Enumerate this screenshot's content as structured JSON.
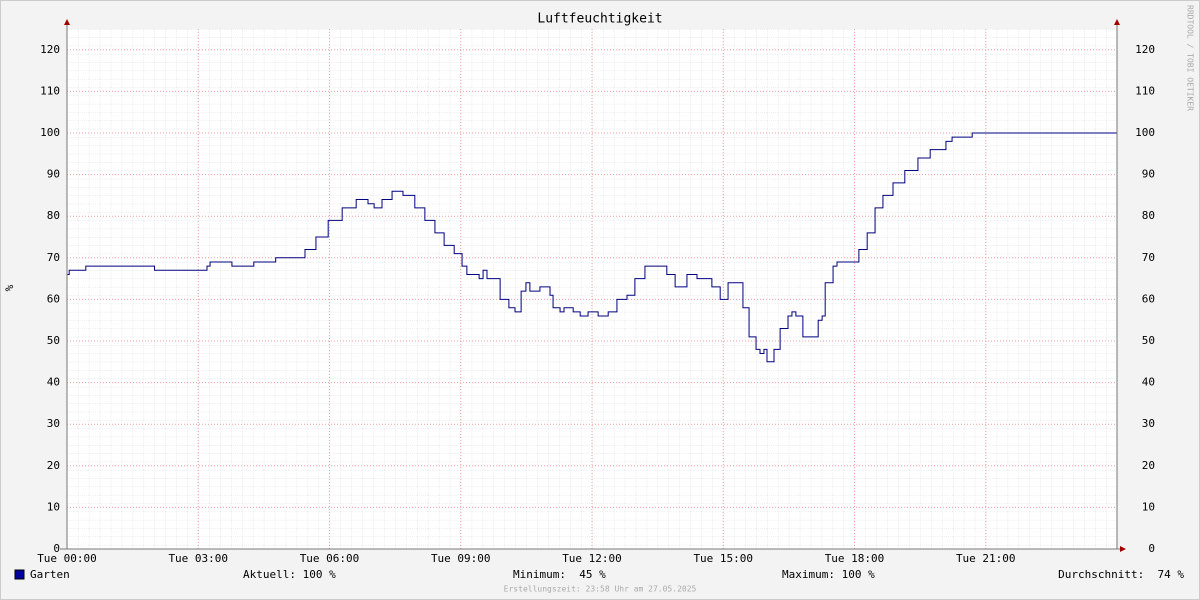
{
  "chart_data": {
    "type": "line",
    "title": "Luftfeuchtigkeit",
    "y_label": "%",
    "watermark": "RRDTOOL / TOBI OETIKER",
    "footer": "Erstellungszeit: 23:58 Uhr am 27.05.2025",
    "xlim": [
      0,
      24
    ],
    "xticks": [
      {
        "value": 0,
        "label": "Tue 00:00"
      },
      {
        "value": 3,
        "label": "Tue 03:00"
      },
      {
        "value": 6,
        "label": "Tue 06:00"
      },
      {
        "value": 9,
        "label": "Tue 09:00"
      },
      {
        "value": 12,
        "label": "Tue 12:00"
      },
      {
        "value": 15,
        "label": "Tue 15:00"
      },
      {
        "value": 18,
        "label": "Tue 18:00"
      },
      {
        "value": 21,
        "label": "Tue 21:00"
      }
    ],
    "ylim": [
      0,
      125
    ],
    "yticks": [
      0,
      10,
      20,
      30,
      40,
      50,
      60,
      70,
      80,
      90,
      100,
      110,
      120
    ],
    "grid": true,
    "step": true,
    "x": [
      0,
      0.05,
      0.4,
      0.43,
      1.97,
      2.0,
      3.1,
      3.2,
      3.27,
      3.73,
      3.77,
      4.23,
      4.27,
      4.73,
      4.77,
      5.36,
      5.44,
      5.69,
      5.97,
      6.29,
      6.61,
      6.88,
      7.02,
      7.2,
      7.43,
      7.68,
      7.95,
      8.18,
      8.41,
      8.62,
      8.85,
      9.03,
      9.14,
      9.35,
      9.42,
      9.51,
      9.6,
      9.78,
      9.9,
      10.1,
      10.24,
      10.38,
      10.49,
      10.58,
      10.72,
      10.81,
      11.04,
      11.11,
      11.27,
      11.36,
      11.57,
      11.73,
      11.91,
      12.14,
      12.37,
      12.57,
      12.8,
      12.98,
      13.21,
      13.46,
      13.71,
      13.9,
      14.17,
      14.4,
      14.74,
      14.93,
      15.11,
      15.31,
      15.45,
      15.59,
      15.75,
      15.84,
      15.93,
      16.0,
      16.16,
      16.3,
      16.48,
      16.57,
      16.66,
      16.82,
      16.96,
      17.17,
      17.26,
      17.33,
      17.51,
      17.6,
      17.85,
      18.1,
      18.29,
      18.47,
      18.65,
      18.88,
      19.15,
      19.45,
      19.73,
      20.09,
      20.23,
      20.69,
      24
    ],
    "series": [
      {
        "name": "Garten",
        "color": "#000080",
        "legend_color": "#0000a0",
        "values": [
          66,
          67,
          67,
          68,
          68,
          67,
          67,
          68,
          69,
          69,
          68,
          68,
          69,
          69,
          70,
          70,
          72,
          75,
          79,
          82,
          84,
          83,
          82,
          84,
          86,
          85,
          82,
          79,
          76,
          73,
          71,
          68,
          66,
          66,
          65,
          67,
          65,
          65,
          60,
          58,
          57,
          62,
          64,
          62,
          62,
          63,
          61,
          58,
          57,
          58,
          57,
          56,
          57,
          56,
          57,
          60,
          61,
          65,
          68,
          68,
          66,
          63,
          66,
          65,
          63,
          60,
          64,
          64,
          58,
          51,
          48,
          47,
          48,
          45,
          48,
          53,
          56,
          57,
          56,
          51,
          51,
          55,
          56,
          64,
          68,
          69,
          69,
          72,
          76,
          82,
          85,
          88,
          91,
          94,
          96,
          98,
          99,
          100,
          100
        ]
      }
    ],
    "stats": [
      "Aktuell: 100 %",
      "Minimum:  45 %",
      "Maximum: 100 %",
      "Durchschnitt:  74 %"
    ]
  }
}
